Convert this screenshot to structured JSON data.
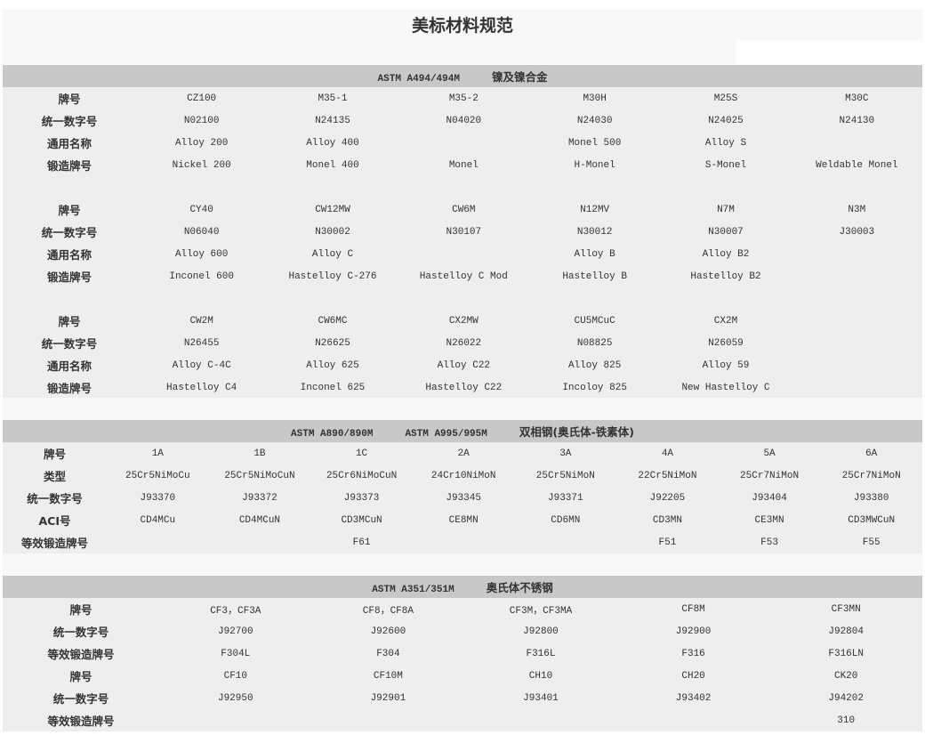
{
  "title": "美标材料规范",
  "t1": {
    "spec": "ASTM  A494/494M",
    "name": "镍及镍合金",
    "blocks": [
      {
        "rows": [
          [
            "牌号",
            "CZ100",
            "M35-1",
            "M35-2",
            "M30H",
            "M25S",
            "M30C"
          ],
          [
            "统一数字号",
            "N02100",
            "N24135",
            "N04020",
            "N24030",
            "N24025",
            "N24130"
          ],
          [
            "通用名称",
            "Alloy  200",
            "Alloy  400",
            "",
            "Monel  500",
            "Alloy  S",
            ""
          ],
          [
            "锻造牌号",
            "Nickel  200",
            "Monel  400",
            "Monel",
            "H-Monel",
            "S-Monel",
            "Weldable  Monel"
          ]
        ]
      },
      {
        "rows": [
          [
            "牌号",
            "CY40",
            "CW12MW",
            "CW6M",
            "N12MV",
            "N7M",
            "N3M"
          ],
          [
            "统一数字号",
            "N06040",
            "N30002",
            "N30107",
            "N30012",
            "N30007",
            "J30003"
          ],
          [
            "通用名称",
            "Alloy  600",
            "Alloy  C",
            "",
            "Alloy  B",
            "Alloy  B2",
            ""
          ],
          [
            "锻造牌号",
            "Inconel  600",
            "Hastelloy  C-276",
            "Hastelloy  C  Mod",
            "Hastelloy  B",
            "Hastelloy  B2",
            ""
          ]
        ]
      },
      {
        "rows": [
          [
            "牌号",
            "CW2M",
            "CW6MC",
            "CX2MW",
            "CU5MCuC",
            "CX2M",
            ""
          ],
          [
            "统一数字号",
            "N26455",
            "N26625",
            "N26022",
            "N08825",
            "N26059",
            ""
          ],
          [
            "通用名称",
            "Alloy  C-4C",
            "Alloy  625",
            "Alloy  C22",
            "Alloy  825",
            "Alloy  59",
            ""
          ],
          [
            "锻造牌号",
            "Hastelloy  C4",
            "Inconel  625",
            "Hastelloy  C22",
            "Incoloy  825",
            "New  Hastelloy  C",
            ""
          ]
        ]
      }
    ]
  },
  "t2": {
    "spec1": "ASTM  A890/890M",
    "spec2": "ASTM  A995/995M",
    "name": "双相钢(奥氏体-铁素体)",
    "rows": [
      [
        "牌号",
        "1A",
        "1B",
        "1C",
        "2A",
        "3A",
        "4A",
        "5A",
        "6A"
      ],
      [
        "类型",
        "25Cr5NiMoCu",
        "25Cr5NiMoCuN",
        "25Cr6NiMoCuN",
        "24Cr10NiMoN",
        "25Cr5NiMoN",
        "22Cr5NiMoN",
        "25Cr7NiMoN",
        "25Cr7NiMoN"
      ],
      [
        "统一数字号",
        "J93370",
        "J93372",
        "J93373",
        "J93345",
        "J93371",
        "J92205",
        "J93404",
        "J93380"
      ],
      [
        "ACI号",
        "CD4MCu",
        "CD4MCuN",
        "CD3MCuN",
        "CE8MN",
        "CD6MN",
        "CD3MN",
        "CE3MN",
        "CD3MWCuN"
      ],
      [
        "等效锻造牌号",
        "",
        "",
        "F61",
        "",
        "",
        "F51",
        "F53",
        "F55"
      ]
    ]
  },
  "t3": {
    "spec": "ASTM  A351/351M",
    "name": "奥氏体不锈钢",
    "rows": [
      [
        "牌号",
        "CF3，CF3A",
        "CF8，CF8A",
        "CF3M，CF3MA",
        "CF8M",
        "CF3MN"
      ],
      [
        "统一数字号",
        "J92700",
        "J92600",
        "J92800",
        "J92900",
        "J92804"
      ],
      [
        "等效锻造牌号",
        "F304L",
        "F304",
        "F316L",
        "F316",
        "F316LN"
      ],
      [
        "牌号",
        "CF10",
        "CF10M",
        "CH10",
        "CH20",
        "CK20"
      ],
      [
        "统一数字号",
        "J92950",
        "J92901",
        "J93401",
        "J93402",
        "J94202"
      ],
      [
        "等效锻造牌号",
        "",
        "",
        "",
        "",
        "310"
      ]
    ]
  }
}
